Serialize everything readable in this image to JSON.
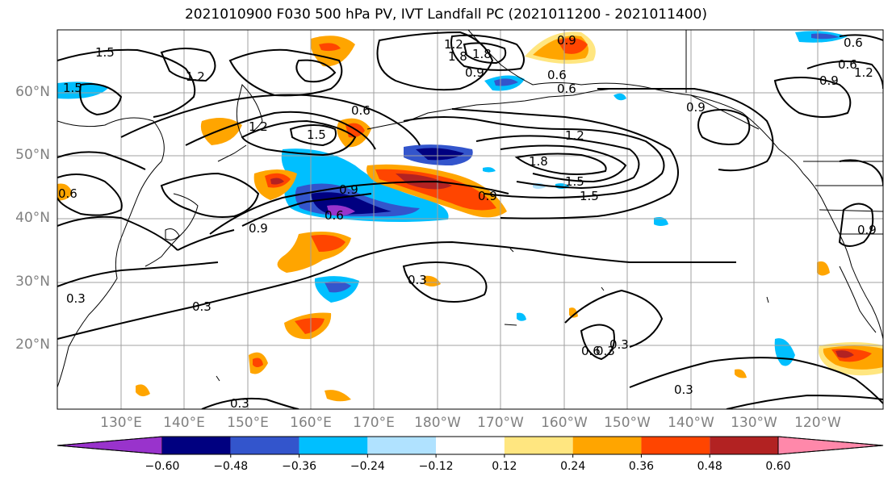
{
  "title": "2021010900 F030 500 hPa PV, IVT Landfall PC (2021011200 - 2021011400)",
  "lat_labels": [
    "60°N",
    "50°N",
    "40°N",
    "30°N",
    "20°N"
  ],
  "lon_labels": [
    "130°E",
    "140°E",
    "150°E",
    "160°E",
    "170°E",
    "180°W",
    "170°W",
    "160°W",
    "150°W",
    "140°W",
    "130°W",
    "120°W"
  ],
  "contour_labels": [
    "1.5",
    "1.5",
    "1.2",
    "1.2",
    "1.8",
    "1.8",
    "0.9",
    "0.9",
    "0.6",
    "0.6",
    "0.6",
    "1.2",
    "1.5",
    "1.2",
    "1.8",
    "1.5",
    "1.5",
    "0.9",
    "0.9",
    "0.6",
    "0.3",
    "0.3",
    "0.3",
    "0.3",
    "0.6",
    "0.3",
    "0.9",
    "0.6",
    "0.6",
    "1.2",
    "0.9",
    "0.9",
    "0.6",
    "0.3",
    "0.3",
    "0.9"
  ],
  "colorbar": {
    "ticks": [
      "−0.60",
      "−0.48",
      "−0.36",
      "−0.24",
      "−0.12",
      "0.12",
      "0.24",
      "0.36",
      "0.48",
      "0.60"
    ],
    "colors": [
      "#9933cc",
      "#000080",
      "#3355cc",
      "#00bfff",
      "#b0e2ff",
      "#ffffff",
      "#ffe680",
      "#ffa500",
      "#ff4500",
      "#b22222",
      "#ff88aa"
    ]
  },
  "colors": {
    "neg_deep": "#000080",
    "neg_purple": "#9933cc",
    "neg_mid": "#3355cc",
    "neg_light": "#00bfff",
    "pos_light": "#ffe680",
    "pos_mid": "#ffa500",
    "pos_strong": "#ff4500",
    "pos_deep": "#b22222"
  }
}
